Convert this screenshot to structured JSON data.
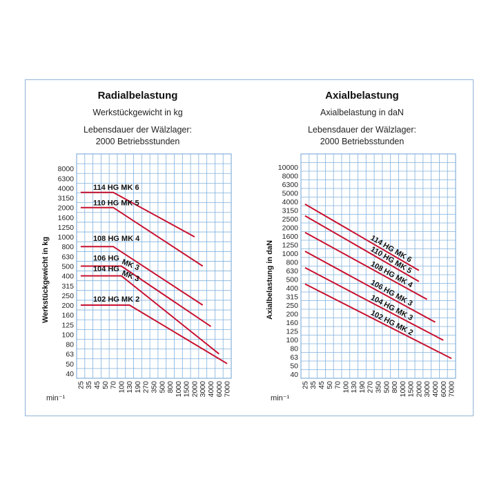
{
  "chart_data": [
    {
      "type": "line",
      "title": "Radialbelastung",
      "subtitle": "Werkstückgewicht in kg",
      "life_line1": "Lebensdauer der Wälzlager:",
      "life_line2": "2000 Betriebsstunden",
      "ylabel": "Werkstückgewicht in kg",
      "xunit": "min⁻¹",
      "x_ticks": [
        "25",
        "35",
        "45",
        "50",
        "70",
        "100",
        "130",
        "190",
        "270",
        "350",
        "500",
        "800",
        "1000",
        "1500",
        "2000",
        "3000",
        "4000",
        "6000",
        "7000"
      ],
      "y_ticks": [
        "40",
        "50",
        "63",
        "80",
        "100",
        "125",
        "160",
        "200",
        "250",
        "315",
        "400",
        "500",
        "630",
        "800",
        "1000",
        "1250",
        "1600",
        "2000",
        "3150",
        "4000",
        "6300",
        "8000"
      ],
      "series": [
        {
          "name": "114 HG MK 6",
          "color": "#c8102e",
          "points": [
            [
              25,
              3600
            ],
            [
              70,
              3600
            ],
            [
              2000,
              1000
            ]
          ],
          "label_x": "40",
          "label_y": "3700",
          "rotated": false
        },
        {
          "name": "110 HG MK 5",
          "color": "#c8102e",
          "points": [
            [
              25,
              2000
            ],
            [
              70,
              2000
            ],
            [
              3000,
              500
            ]
          ],
          "label_x": "40",
          "label_y": "2080",
          "rotated": false
        },
        {
          "name": "108 HG MK 4",
          "color": "#c8102e",
          "points": [
            [
              25,
              800
            ],
            [
              70,
              800
            ],
            [
              3000,
              200
            ]
          ],
          "label_x": "40",
          "label_y": "880",
          "rotated": false
        },
        {
          "name": "106 HG",
          "color": "#c8102e",
          "points": [
            [
              25,
              500
            ],
            [
              100,
              500
            ],
            [
              4000,
              120
            ]
          ],
          "label_x": "40",
          "label_y": "550",
          "rotated": false
        },
        {
          "name": "104 HG",
          "color": "#c8102e",
          "points": [
            [
              25,
              400
            ],
            [
              100,
              400
            ],
            [
              6000,
              63
            ]
          ],
          "label_x": "40",
          "label_y": "430",
          "rotated": false
        },
        {
          "name": "102 HG MK 2",
          "color": "#c8102e",
          "points": [
            [
              25,
              200
            ],
            [
              130,
              200
            ],
            [
              7000,
              50
            ]
          ],
          "label_x": "40",
          "label_y": "210",
          "rotated": false
        }
      ],
      "extra_labels": [
        {
          "text": "MK 3",
          "label_x": "100",
          "label_y": "530"
        },
        {
          "text": "MK 3",
          "label_x": "100",
          "label_y": "410"
        }
      ]
    },
    {
      "type": "line",
      "title": "Axialbelastung",
      "subtitle": "Axialbelastung in daN",
      "life_line1": "Lebensdauer der Wälzlager:",
      "life_line2": "2000 Betriebsstunden",
      "ylabel": "Axialbelastung in daN",
      "xunit": "min⁻¹",
      "x_ticks": [
        "25",
        "35",
        "45",
        "50",
        "70",
        "100",
        "130",
        "190",
        "270",
        "350",
        "500",
        "800",
        "1000",
        "1500",
        "2000",
        "3000",
        "4000",
        "6000",
        "7000"
      ],
      "y_ticks": [
        "40",
        "50",
        "63",
        "80",
        "100",
        "125",
        "160",
        "200",
        "250",
        "315",
        "400",
        "500",
        "630",
        "800",
        "1000",
        "1250",
        "1600",
        "2000",
        "2500",
        "3150",
        "4000",
        "5000",
        "6300",
        "8000",
        "10000"
      ],
      "series": [
        {
          "name": "114 HG MK 6",
          "color": "#c8102e",
          "points": [
            [
              25,
              3700
            ],
            [
              2000,
              630
            ]
          ],
          "label_x": "270",
          "label_y": "1700",
          "rotated": true
        },
        {
          "name": "110 HG MK 5",
          "color": "#c8102e",
          "points": [
            [
              25,
              2700
            ],
            [
              2000,
              470
            ]
          ],
          "label_x": "270",
          "label_y": "1350",
          "rotated": true
        },
        {
          "name": "108 HG MK 4",
          "color": "#c8102e",
          "points": [
            [
              25,
              1750
            ],
            [
              3000,
              290
            ]
          ],
          "label_x": "270",
          "label_y": "1050",
          "rotated": true
        },
        {
          "name": "106 HG MK 3",
          "color": "#c8102e",
          "points": [
            [
              25,
              1050
            ],
            [
              4000,
              160
            ]
          ],
          "label_x": "270",
          "label_y": "650",
          "rotated": true
        },
        {
          "name": "104 HG MK 3",
          "color": "#c8102e",
          "points": [
            [
              25,
              680
            ],
            [
              6000,
              98
            ]
          ],
          "label_x": "270",
          "label_y": "420",
          "rotated": true
        },
        {
          "name": "102 HG MK 2",
          "color": "#c8102e",
          "points": [
            [
              25,
              440
            ],
            [
              7000,
              60
            ]
          ],
          "label_x": "270",
          "label_y": "270",
          "rotated": true
        }
      ]
    }
  ]
}
